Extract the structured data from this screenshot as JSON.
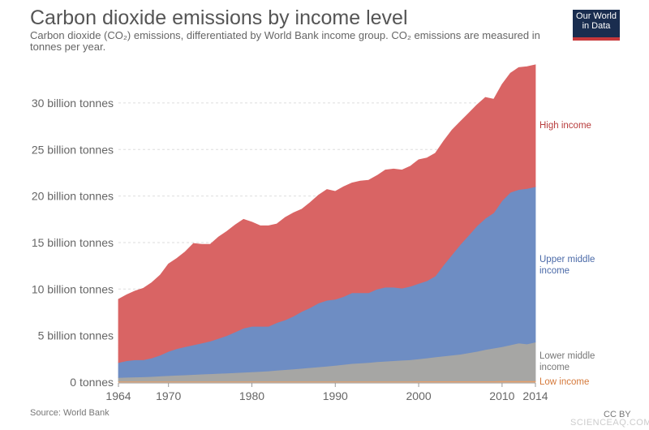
{
  "header": {
    "title": "Carbon dioxide emissions by income level",
    "subtitle": "Carbon dioxide (CO₂) emissions, differentiated by World Bank income group. CO₂ emissions are measured in tonnes per year.",
    "logo": "Our World in Data"
  },
  "footer": {
    "source": "Source: World Bank",
    "license": "CC BY",
    "watermark": "SCIENCEAQ.COM"
  },
  "chart_data": {
    "type": "area",
    "stacked": true,
    "title": "Carbon dioxide emissions by income level",
    "xlabel": "",
    "ylabel": "",
    "x": [
      1964,
      1965,
      1966,
      1967,
      1968,
      1969,
      1970,
      1971,
      1972,
      1973,
      1974,
      1975,
      1976,
      1977,
      1978,
      1979,
      1980,
      1981,
      1982,
      1983,
      1984,
      1985,
      1986,
      1987,
      1988,
      1989,
      1990,
      1991,
      1992,
      1993,
      1994,
      1995,
      1996,
      1997,
      1998,
      1999,
      2000,
      2001,
      2002,
      2003,
      2004,
      2005,
      2006,
      2007,
      2008,
      2009,
      2010,
      2011,
      2012,
      2013,
      2014
    ],
    "xticks": [
      "1964",
      "1970",
      "1980",
      "1990",
      "2000",
      "2010",
      "2014"
    ],
    "yticks": [
      {
        "v": 0,
        "label": "0 tonnes"
      },
      {
        "v": 5,
        "label": "5 billion tonnes"
      },
      {
        "v": 10,
        "label": "10 billion tonnes"
      },
      {
        "v": 15,
        "label": "15 billion tonnes"
      },
      {
        "v": 20,
        "label": "20 billion tonnes"
      },
      {
        "v": 25,
        "label": "25 billion tonnes"
      },
      {
        "v": 30,
        "label": "30 billion tonnes"
      }
    ],
    "ylim": [
      0,
      34.5
    ],
    "yunit": "billion tonnes",
    "grid": "horizontal dashed",
    "legend": "right, inline labels",
    "series": [
      {
        "name": "Low income",
        "color": "#e8a06a",
        "label_color": "#d5793a",
        "values": [
          0.1,
          0.1,
          0.1,
          0.1,
          0.1,
          0.1,
          0.1,
          0.1,
          0.1,
          0.1,
          0.1,
          0.1,
          0.1,
          0.1,
          0.1,
          0.1,
          0.1,
          0.1,
          0.1,
          0.1,
          0.1,
          0.1,
          0.1,
          0.1,
          0.1,
          0.1,
          0.1,
          0.1,
          0.1,
          0.1,
          0.1,
          0.1,
          0.1,
          0.1,
          0.1,
          0.1,
          0.12,
          0.12,
          0.12,
          0.12,
          0.12,
          0.12,
          0.12,
          0.12,
          0.12,
          0.12,
          0.14,
          0.14,
          0.14,
          0.14,
          0.14
        ]
      },
      {
        "name": "Lower middle income",
        "color": "#a6a6a4",
        "label_color": "#777777",
        "values": [
          0.4,
          0.42,
          0.45,
          0.47,
          0.5,
          0.55,
          0.6,
          0.64,
          0.68,
          0.72,
          0.76,
          0.8,
          0.84,
          0.88,
          0.92,
          0.96,
          1.0,
          1.05,
          1.1,
          1.17,
          1.24,
          1.3,
          1.38,
          1.46,
          1.54,
          1.62,
          1.7,
          1.8,
          1.9,
          1.95,
          2.0,
          2.1,
          2.15,
          2.2,
          2.25,
          2.3,
          2.38,
          2.48,
          2.58,
          2.68,
          2.78,
          2.88,
          3.03,
          3.18,
          3.38,
          3.53,
          3.66,
          3.86,
          4.06,
          3.96,
          4.16
        ]
      },
      {
        "name": "Upper middle income",
        "color": "#6e8dc3",
        "label_color": "#4b6aa8",
        "values": [
          1.6,
          1.78,
          1.85,
          1.83,
          2.0,
          2.25,
          2.6,
          2.86,
          3.02,
          3.18,
          3.34,
          3.5,
          3.76,
          4.02,
          4.38,
          4.74,
          4.9,
          4.85,
          4.8,
          5.13,
          5.36,
          5.7,
          6.12,
          6.44,
          6.86,
          7.08,
          7.1,
          7.3,
          7.6,
          7.55,
          7.5,
          7.8,
          7.95,
          7.9,
          7.75,
          7.9,
          8.1,
          8.3,
          8.7,
          9.8,
          10.8,
          11.8,
          12.65,
          13.5,
          14.1,
          14.55,
          15.7,
          16.4,
          16.5,
          16.7,
          16.7
        ]
      },
      {
        "name": "High income",
        "color": "#d96464",
        "label_color": "#b83c3c",
        "values": [
          6.8,
          7.1,
          7.4,
          7.7,
          8.1,
          8.6,
          9.4,
          9.7,
          10.2,
          10.9,
          10.6,
          10.4,
          10.9,
          11.2,
          11.5,
          11.7,
          11.2,
          10.8,
          10.8,
          10.6,
          11.0,
          11.1,
          11.0,
          11.3,
          11.6,
          11.9,
          11.6,
          11.8,
          11.8,
          12.0,
          12.1,
          12.2,
          12.6,
          12.7,
          12.7,
          12.9,
          13.3,
          13.2,
          13.2,
          13.3,
          13.4,
          13.2,
          13.1,
          13.0,
          13.0,
          12.2,
          12.5,
          12.8,
          13.1,
          13.1,
          13.1
        ]
      }
    ],
    "series_labels": [
      {
        "series": "High income",
        "lines": [
          "High income"
        ]
      },
      {
        "series": "Upper middle income",
        "lines": [
          "Upper middle",
          "income"
        ]
      },
      {
        "series": "Lower middle income",
        "lines": [
          "Lower middle",
          "income"
        ]
      },
      {
        "series": "Low income",
        "lines": [
          "Low income"
        ]
      }
    ]
  }
}
